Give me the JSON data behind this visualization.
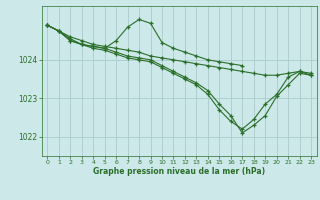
{
  "background_color": "#cce8e8",
  "plot_bg_color": "#cce8e8",
  "grid_color": "#aacccc",
  "line_color": "#2a6e2a",
  "xlabel": "Graphe pression niveau de la mer (hPa)",
  "xlim": [
    -0.5,
    23.5
  ],
  "ylim": [
    1021.5,
    1025.4
  ],
  "yticks": [
    1022,
    1023,
    1024
  ],
  "xticks": [
    0,
    1,
    2,
    3,
    4,
    5,
    6,
    7,
    8,
    9,
    10,
    11,
    12,
    13,
    14,
    15,
    16,
    17,
    18,
    19,
    20,
    21,
    22,
    23
  ],
  "series": [
    {
      "x": [
        0,
        1,
        2,
        3,
        4,
        5,
        6,
        7,
        8,
        9,
        10,
        11,
        12,
        13,
        14,
        15,
        16,
        17,
        18,
        19,
        20,
        21,
        22,
        23
      ],
      "y": [
        1024.9,
        1024.75,
        1024.6,
        1024.5,
        1024.4,
        1024.35,
        1024.3,
        1024.25,
        1024.2,
        1024.1,
        1024.05,
        1024.0,
        1023.95,
        1023.9,
        1023.85,
        1023.8,
        1023.75,
        1023.7,
        1023.65,
        1023.6,
        1023.6,
        1023.65,
        1023.7,
        1023.65
      ]
    },
    {
      "x": [
        0,
        1,
        2,
        3,
        4,
        5,
        6,
        7,
        8,
        9,
        10,
        11,
        12,
        13,
        14,
        15,
        16,
        17
      ],
      "y": [
        1024.9,
        1024.75,
        1024.55,
        1024.4,
        1024.35,
        1024.3,
        1024.5,
        1024.85,
        1025.05,
        1024.95,
        1024.45,
        1024.3,
        1024.2,
        1024.1,
        1024.0,
        1023.95,
        1023.9,
        1023.85
      ]
    },
    {
      "x": [
        0,
        1,
        2,
        3,
        4,
        5,
        6,
        7,
        8,
        9,
        10,
        11,
        12,
        13,
        14,
        15,
        16,
        17,
        18,
        19,
        20,
        21,
        22,
        23
      ],
      "y": [
        1024.9,
        1024.75,
        1024.5,
        1024.4,
        1024.35,
        1024.3,
        1024.2,
        1024.1,
        1024.05,
        1024.0,
        1023.85,
        1023.7,
        1023.55,
        1023.4,
        1023.2,
        1022.85,
        1022.55,
        1022.1,
        1022.3,
        1022.55,
        1023.05,
        1023.35,
        1023.65,
        1023.6
      ]
    },
    {
      "x": [
        0,
        1,
        2,
        3,
        4,
        5,
        6,
        7,
        8,
        9,
        10,
        11,
        12,
        13,
        14,
        15,
        16,
        17,
        18,
        19,
        20,
        21,
        22,
        23
      ],
      "y": [
        1024.9,
        1024.75,
        1024.5,
        1024.4,
        1024.3,
        1024.25,
        1024.15,
        1024.05,
        1024.0,
        1023.95,
        1023.8,
        1023.65,
        1023.5,
        1023.35,
        1023.1,
        1022.7,
        1022.4,
        1022.2,
        1022.45,
        1022.85,
        1023.1,
        1023.55,
        1023.7,
        1023.6
      ]
    }
  ]
}
